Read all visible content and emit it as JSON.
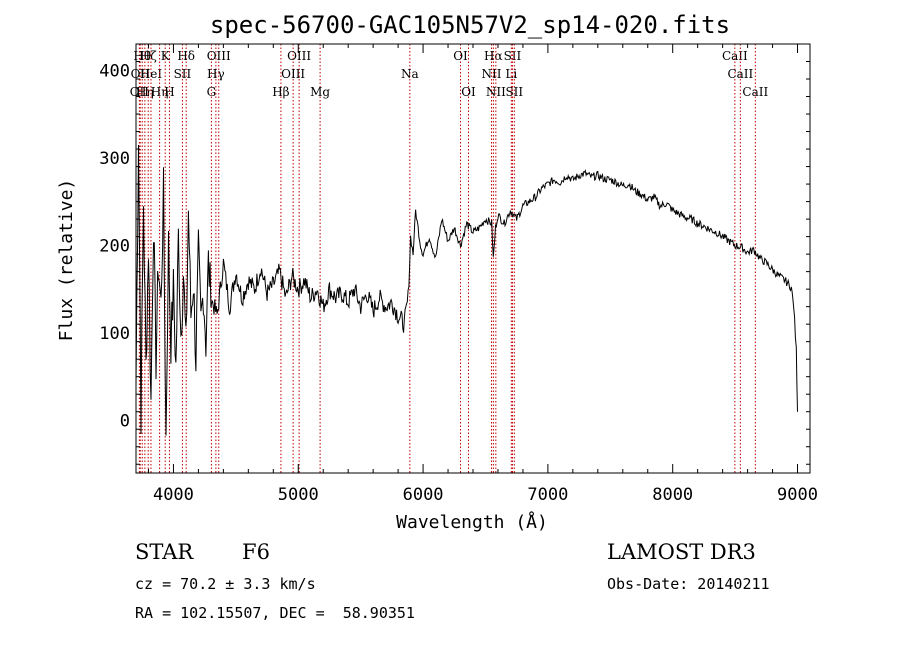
{
  "chart_data": {
    "type": "line",
    "title": "spec-56700-GAC105N57V2_sp14-020.fits",
    "xlabel": "Wavelength (Å)",
    "ylabel": "Flux (relative)",
    "xlim": [
      3700,
      9100
    ],
    "ylim": [
      -60,
      430
    ],
    "xticks": [
      4000,
      5000,
      6000,
      7000,
      8000,
      9000
    ],
    "yticks": [
      0,
      100,
      200,
      300,
      400
    ],
    "xtick_labels": [
      "4000",
      "5000",
      "6000",
      "7000",
      "8000",
      "9000"
    ],
    "ytick_labels": [
      "0",
      "100",
      "200",
      "300",
      "400"
    ],
    "series": [
      {
        "name": "flux",
        "color": "#000000",
        "x": [
          3700,
          3720,
          3740,
          3760,
          3780,
          3800,
          3820,
          3840,
          3860,
          3880,
          3900,
          3920,
          3940,
          3960,
          3980,
          4000,
          4020,
          4040,
          4060,
          4080,
          4100,
          4120,
          4140,
          4160,
          4180,
          4200,
          4220,
          4240,
          4260,
          4280,
          4300,
          4350,
          4400,
          4450,
          4500,
          4550,
          4600,
          4650,
          4700,
          4750,
          4800,
          4850,
          4900,
          4950,
          5000,
          5050,
          5100,
          5150,
          5200,
          5250,
          5300,
          5350,
          5400,
          5450,
          5500,
          5550,
          5600,
          5650,
          5700,
          5750,
          5800,
          5850,
          5880,
          5900,
          5920,
          5940,
          5960,
          5980,
          6000,
          6050,
          6100,
          6150,
          6200,
          6250,
          6300,
          6350,
          6400,
          6450,
          6500,
          6550,
          6563,
          6580,
          6600,
          6650,
          6700,
          6750,
          6800,
          6850,
          6900,
          6950,
          7000,
          7050,
          7100,
          7150,
          7200,
          7250,
          7300,
          7350,
          7400,
          7450,
          7500,
          7550,
          7600,
          7650,
          7700,
          7750,
          7800,
          7850,
          7900,
          7950,
          8000,
          8050,
          8100,
          8150,
          8200,
          8250,
          8300,
          8350,
          8400,
          8450,
          8500,
          8550,
          8600,
          8650,
          8700,
          8750,
          8800,
          8850,
          8900,
          8950,
          8970,
          8990,
          9000
        ],
        "y": [
          40,
          330,
          10,
          250,
          60,
          200,
          20,
          230,
          70,
          180,
          130,
          260,
          -20,
          200,
          90,
          150,
          60,
          210,
          100,
          170,
          80,
          240,
          120,
          160,
          70,
          190,
          110,
          150,
          90,
          180,
          140,
          120,
          180,
          130,
          170,
          140,
          160,
          150,
          175,
          145,
          155,
          170,
          140,
          165,
          150,
          160,
          140,
          150,
          130,
          150,
          140,
          145,
          135,
          150,
          130,
          145,
          125,
          140,
          130,
          135,
          120,
          110,
          140,
          210,
          190,
          240,
          220,
          200,
          190,
          210,
          185,
          230,
          205,
          220,
          200,
          225,
          215,
          220,
          230,
          225,
          185,
          220,
          235,
          225,
          240,
          230,
          245,
          250,
          255,
          265,
          270,
          275,
          272,
          280,
          275,
          280,
          282,
          278,
          280,
          276,
          275,
          272,
          268,
          270,
          262,
          258,
          252,
          255,
          245,
          248,
          240,
          236,
          232,
          230,
          225,
          222,
          218,
          215,
          210,
          205,
          200,
          198,
          192,
          195,
          185,
          180,
          172,
          165,
          160,
          152,
          130,
          80,
          10
        ]
      }
    ],
    "lines": [
      {
        "wavelength": 3727,
        "label": "OII",
        "row": 2
      },
      {
        "wavelength": 3734,
        "label": "OII",
        "row": 1
      },
      {
        "wavelength": 3750,
        "label": "Hθ",
        "row": 0
      },
      {
        "wavelength": 3771,
        "label": "Hη",
        "row": 2
      },
      {
        "wavelength": 3798,
        "label": "Hζ",
        "row": 0
      },
      {
        "wavelength": 3820,
        "label": "HeI",
        "row": 1
      },
      {
        "wavelength": 3889,
        "label": "Hη",
        "row": 2
      },
      {
        "wavelength": 3934,
        "label": "K",
        "row": 0
      },
      {
        "wavelength": 3968,
        "label": "H",
        "row": 2
      },
      {
        "wavelength": 4072,
        "label": "SII",
        "row": 1
      },
      {
        "wavelength": 4102,
        "label": "Hδ",
        "row": 0
      },
      {
        "wavelength": 4304,
        "label": "G",
        "row": 2
      },
      {
        "wavelength": 4340,
        "label": "Hγ",
        "row": 1
      },
      {
        "wavelength": 4363,
        "label": "OIII",
        "row": 0
      },
      {
        "wavelength": 4861,
        "label": "Hβ",
        "row": 2
      },
      {
        "wavelength": 4959,
        "label": "OIII",
        "row": 1
      },
      {
        "wavelength": 5007,
        "label": "OIII",
        "row": 0
      },
      {
        "wavelength": 5175,
        "label": "Mg",
        "row": 2
      },
      {
        "wavelength": 5894,
        "label": "Na",
        "row": 1
      },
      {
        "wavelength": 6300,
        "label": "OI",
        "row": 0
      },
      {
        "wavelength": 6364,
        "label": "OI",
        "row": 2
      },
      {
        "wavelength": 6548,
        "label": "NII",
        "row": 1
      },
      {
        "wavelength": 6563,
        "label": "Hα",
        "row": 0
      },
      {
        "wavelength": 6583,
        "label": "NII",
        "row": 2
      },
      {
        "wavelength": 6707,
        "label": "Li",
        "row": 1
      },
      {
        "wavelength": 6716,
        "label": "SII",
        "row": 0
      },
      {
        "wavelength": 6731,
        "label": "SII",
        "row": 2
      },
      {
        "wavelength": 8498,
        "label": "CaII",
        "row": 0
      },
      {
        "wavelength": 8542,
        "label": "CaII",
        "row": 1
      },
      {
        "wavelength": 8662,
        "label": "CaII",
        "row": 2
      }
    ],
    "line_color": "#c00000"
  },
  "info": {
    "object_class": "STAR",
    "subclass": "F6",
    "survey": "LAMOST DR3",
    "cz": "cz = 70.2 ± 3.3 km/s",
    "obs_date": "Obs-Date: 20140211",
    "coords": "RA = 102.15507, DEC =  58.90351"
  }
}
